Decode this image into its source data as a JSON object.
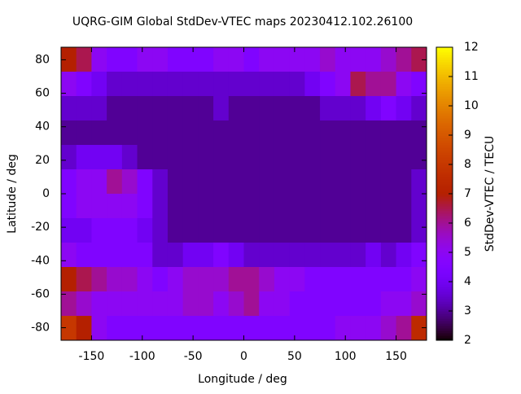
{
  "chart_data": {
    "type": "heatmap",
    "title": "UQRG-GIM Global StdDev-VTEC maps 20230412.102.26100",
    "xlabel": "Longitude / deg",
    "ylabel": "Latitude / deg",
    "colorbar_label": "StdDev-VTEC / TECU",
    "colormap": "gnuplot",
    "xlim": [
      -180,
      180
    ],
    "ylim": [
      -87.5,
      87.5
    ],
    "zlim": [
      2,
      12
    ],
    "xticks": [
      -150,
      -100,
      -50,
      0,
      50,
      100,
      150
    ],
    "yticks": [
      -80,
      -60,
      -40,
      -20,
      0,
      20,
      40,
      60,
      80
    ],
    "zticks": [
      2,
      3,
      4,
      5,
      6,
      7,
      8,
      9,
      10,
      11,
      12
    ],
    "z": [
      [
        7,
        6.5,
        5,
        4.5,
        4.5,
        5,
        5,
        4.5,
        4.5,
        4.5,
        5,
        5,
        4.5,
        5,
        5,
        5,
        5,
        5.5,
        5,
        5,
        5,
        5.5,
        6,
        6.5
      ],
      [
        5,
        4.5,
        4,
        3.5,
        3.5,
        3.5,
        3.5,
        3.5,
        3.5,
        3.5,
        3.5,
        3.5,
        3.5,
        3.5,
        3.5,
        3.5,
        4,
        4.5,
        5,
        6.5,
        6,
        6,
        5,
        4.5
      ],
      [
        3.5,
        3.5,
        3.5,
        3,
        3,
        3,
        3,
        3,
        3,
        3,
        3.5,
        3,
        3,
        3,
        3,
        3,
        3,
        3.5,
        3.5,
        3.5,
        4,
        4.5,
        4,
        3.5
      ],
      [
        3,
        3,
        3,
        3,
        3,
        3,
        3,
        3,
        3,
        3,
        3,
        3,
        3,
        3,
        3,
        3,
        3,
        3,
        3,
        3,
        3,
        3,
        3,
        3
      ],
      [
        3.5,
        4,
        4,
        4,
        3.5,
        3,
        3,
        3,
        3,
        3,
        3,
        3,
        3,
        3,
        3,
        3,
        3,
        3,
        3,
        3,
        3,
        3,
        3,
        3
      ],
      [
        4.5,
        5,
        5,
        6,
        5.5,
        4.5,
        3.5,
        3,
        3,
        3,
        3,
        3,
        3,
        3,
        3,
        3,
        3,
        3,
        3,
        3,
        3,
        3,
        3,
        3.5
      ],
      [
        4.5,
        5,
        5,
        5,
        5,
        4.5,
        3.5,
        3,
        3,
        3,
        3,
        3,
        3,
        3,
        3,
        3,
        3,
        3,
        3,
        3,
        3,
        3,
        3,
        3.5
      ],
      [
        4,
        4,
        4.5,
        4.5,
        4.5,
        4,
        3.5,
        3,
        3,
        3,
        3,
        3,
        3,
        3,
        3,
        3,
        3,
        3,
        3,
        3,
        3,
        3,
        3,
        3.5
      ],
      [
        5,
        4.5,
        4.5,
        4.5,
        4.5,
        4.5,
        3.5,
        3.5,
        4,
        4,
        4.5,
        4,
        3.5,
        3.5,
        3.5,
        3.5,
        3.5,
        3.5,
        3.5,
        3.5,
        4,
        3.5,
        4,
        4.5
      ],
      [
        7,
        6.5,
        6,
        5.5,
        5.5,
        5,
        4.5,
        5,
        5.5,
        5.5,
        5.5,
        6,
        6,
        5.5,
        5,
        5,
        4.5,
        4.5,
        4.5,
        4.5,
        4.5,
        4.5,
        4.5,
        5
      ],
      [
        6,
        5.5,
        5,
        5,
        5,
        5,
        5,
        5,
        5.5,
        5.5,
        5,
        5.5,
        6,
        5,
        5,
        4.5,
        4.5,
        4.5,
        4.5,
        4.5,
        4.5,
        5,
        5,
        5.5
      ],
      [
        8,
        7,
        5,
        4.5,
        4.5,
        4.5,
        4.5,
        4.5,
        4.5,
        4.5,
        4.5,
        4.5,
        4.5,
        4.5,
        4.5,
        4.5,
        4.5,
        4.5,
        5,
        5,
        5,
        5.5,
        6,
        7.5
      ]
    ]
  }
}
